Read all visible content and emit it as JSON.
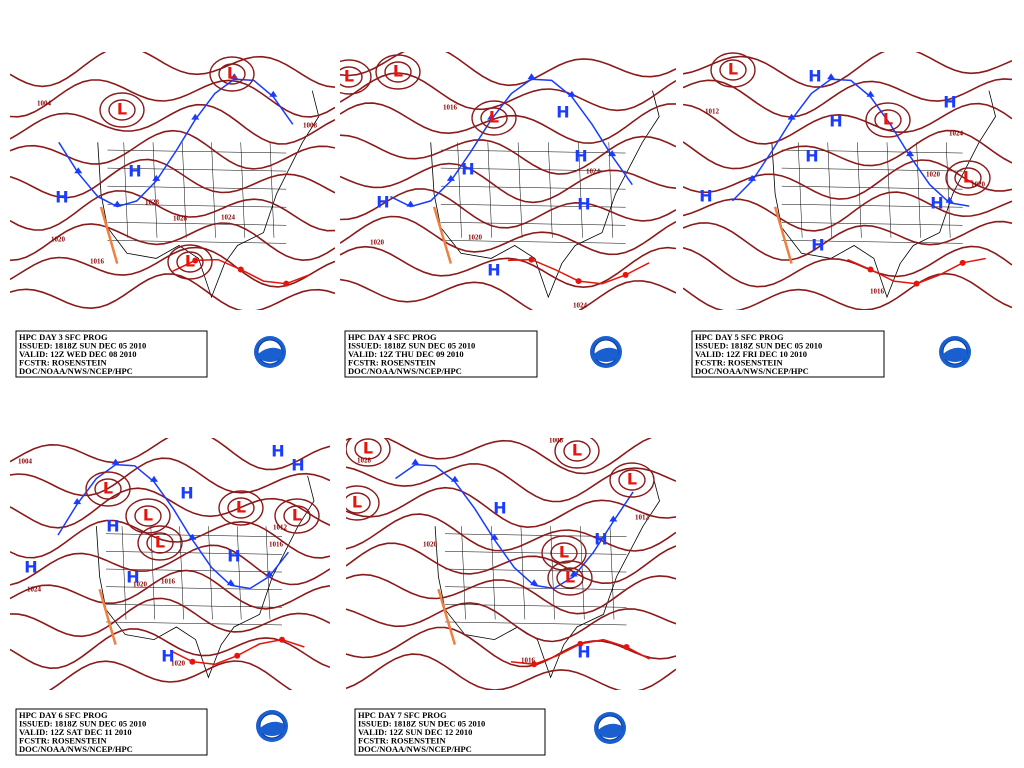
{
  "panels": [
    {
      "caption": {
        "title": "HPC DAY 3 SFC PROG",
        "issued": "ISSUED: 1818Z SUN DEC 05 2010",
        "valid": "VALID: 12Z WED DEC 08 2010",
        "forecaster": "FCSTR: ROSENSTEIN",
        "office": "DOC/NOAA/NWS/NCEP/HPC"
      },
      "labels": [
        "H",
        "H",
        "L",
        "L",
        "L",
        "1020",
        "1016",
        "1028",
        "1028",
        "1024",
        "1008",
        "1004"
      ]
    },
    {
      "caption": {
        "title": "HPC DAY 4 SFC PROG",
        "issued": "ISSUED: 1818Z SUN DEC 05 2010",
        "valid": "VALID: 12Z THU DEC 09 2010",
        "forecaster": "FCSTR: ROSENSTEIN",
        "office": "DOC/NOAA/NWS/NCEP/HPC"
      },
      "labels": [
        "H",
        "H",
        "H",
        "H",
        "H",
        "H",
        "L",
        "L",
        "L",
        "1020",
        "1020",
        "1024",
        "1016",
        "1024"
      ]
    },
    {
      "caption": {
        "title": "HPC DAY 5 SFC PROG",
        "issued": "ISSUED: 1818Z SUN DEC 05 2010",
        "valid": "VALID: 12Z FRI DEC 10 2010",
        "forecaster": "FCSTR: ROSENSTEIN",
        "office": "DOC/NOAA/NWS/NCEP/HPC"
      },
      "labels": [
        "H",
        "H",
        "H",
        "H",
        "H",
        "H",
        "H",
        "L",
        "L",
        "L",
        "1012",
        "1016",
        "1020",
        "1024",
        "1020"
      ]
    },
    {
      "caption": {
        "title": "HPC DAY 6 SFC PROG",
        "issued": "ISSUED: 1818Z SUN DEC 05 2010",
        "valid": "VALID: 12Z SAT DEC 11 2010",
        "forecaster": "FCSTR: ROSENSTEIN",
        "office": "DOC/NOAA/NWS/NCEP/HPC"
      },
      "labels": [
        "H",
        "H",
        "H",
        "H",
        "H",
        "H",
        "H",
        "H",
        "L",
        "L",
        "L",
        "L",
        "L",
        "1024",
        "1004",
        "1020",
        "1016",
        "1012",
        "1016",
        "1020"
      ]
    },
    {
      "caption": {
        "title": "HPC DAY 7 SFC PROG",
        "issued": "ISSUED: 1818Z SUN DEC 05 2010",
        "valid": "VALID: 12Z SUN DEC 12 2010",
        "forecaster": "FCSTR: ROSENSTEIN",
        "office": "DOC/NOAA/NWS/NCEP/HPC"
      },
      "labels": [
        "H",
        "H",
        "H",
        "L",
        "L",
        "L",
        "L",
        "L",
        "L",
        "1028",
        "1020",
        "1016",
        "1012",
        "1008"
      ]
    }
  ]
}
